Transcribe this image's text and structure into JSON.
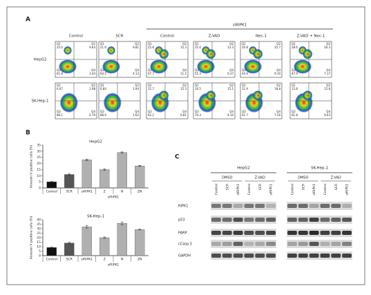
{
  "panel_a": {
    "label": "A",
    "group_label": "siRIPK1",
    "columns": [
      "Control",
      "SCR",
      "Control",
      "Z-VAD",
      "Nec-1",
      "Z-VAD + Nec-1"
    ],
    "quadrant_names": [
      "Q1",
      "Q2",
      "Q3",
      "Q4"
    ],
    "rows": [
      {
        "label": "HepG2",
        "plots": [
          [
            "25.0",
            "9.83",
            "61.8",
            "3.44"
          ],
          [
            "21.6",
            "9.81",
            "64.5",
            "4.13"
          ],
          [
            "25.8",
            "15.3",
            "47.7",
            "11.2"
          ],
          [
            "25.0",
            "13.3",
            "55.3",
            "6.37"
          ],
          [
            "20.8",
            "25.7",
            "44.4",
            "9.10"
          ],
          [
            "28.6",
            "16.3",
            "47.9",
            "7.17"
          ]
        ]
      },
      {
        "label": "SK-Hep-1",
        "plots": [
          [
            "6.67",
            "1.98",
            "88.1",
            "2.79"
          ],
          [
            "6.84",
            "1.94",
            "88.6",
            "2.62"
          ],
          [
            "15.7",
            "15.3",
            "62.2",
            "6.81"
          ],
          [
            "10.5",
            "15.1",
            "70.3",
            "4.10"
          ],
          [
            "11.9",
            "18.8",
            "61.7",
            "7.56"
          ],
          [
            "12.8",
            "15.8",
            "61.8",
            "9.63"
          ]
        ]
      }
    ]
  },
  "panel_b": {
    "label": "B",
    "charts": [
      {
        "type": "bar",
        "title": "HepG2",
        "y_label": "Annexin V positive cells (%)",
        "group_label": "siRIPK1",
        "categories": [
          "Control",
          "SCR",
          "siRIPK1",
          "Z",
          "N",
          "ZN"
        ],
        "values": [
          5,
          11,
          23,
          15,
          29,
          18
        ],
        "errors": [
          0.3,
          0.4,
          0.6,
          0.7,
          0.4,
          0.4
        ],
        "colors": [
          "#111111",
          "#555555",
          "#b0b0b0",
          "#b0b0b0",
          "#b0b0b0",
          "#b0b0b0"
        ],
        "ylim": [
          0,
          35
        ],
        "yticks": [
          0,
          5,
          10,
          15,
          20,
          25,
          30,
          35
        ]
      },
      {
        "type": "bar",
        "title": "SK-Hep-1",
        "y_label": "Annexin V positive cells (%)",
        "group_label": "siRIPK1",
        "categories": [
          "Control",
          "SCR",
          "siRIPK1",
          "Z",
          "N",
          "ZN"
        ],
        "values": [
          9,
          14,
          32,
          20,
          36,
          29
        ],
        "errors": [
          0.5,
          0.8,
          1.3,
          0.8,
          1.5,
          0.5
        ],
        "colors": [
          "#111111",
          "#555555",
          "#b0b0b0",
          "#b0b0b0",
          "#b0b0b0",
          "#b0b0b0"
        ],
        "ylim": [
          0,
          40
        ],
        "yticks": [
          0,
          5,
          10,
          15,
          20,
          25,
          30,
          35,
          40
        ]
      }
    ]
  },
  "panel_c": {
    "label": "C",
    "cell_lines": [
      "HepG2",
      "SK-Hep-1"
    ],
    "treatments": [
      "DMSO",
      "Z-VAD"
    ],
    "lanes": [
      "Control",
      "SCR",
      "siRIPK1"
    ],
    "proteins": [
      "RIPK1",
      "p53",
      "PARP",
      "cCasp.3",
      "GAPDH"
    ]
  }
}
